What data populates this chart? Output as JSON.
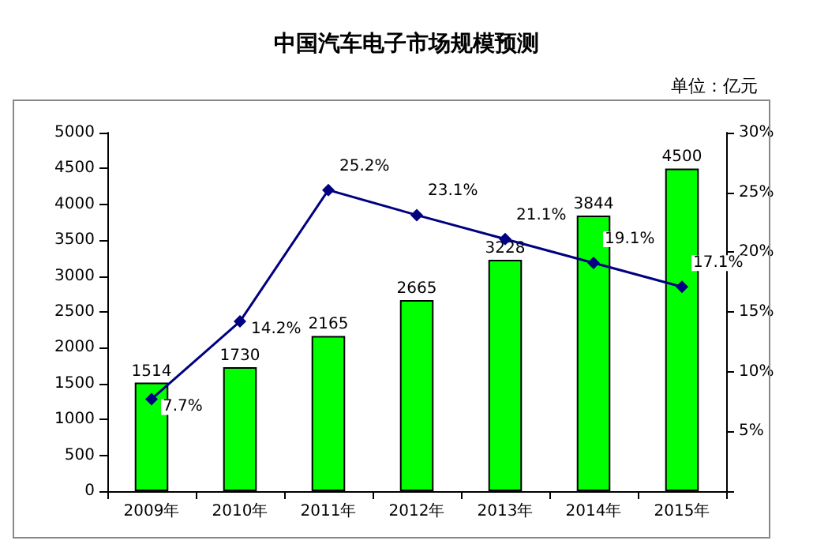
{
  "chart_data": {
    "type": "bar",
    "title": "中国汽车电子市场规模预测",
    "annotations": [
      "单位：亿元"
    ],
    "categories": [
      "2009年",
      "2010年",
      "2011年",
      "2012年",
      "2013年",
      "2014年",
      "2015年"
    ],
    "series": [
      {
        "color": "#00ff00",
        "values": [
          1514,
          1730,
          2165,
          2665,
          3228,
          3844,
          4500
        ],
        "value_labels": [
          "1514",
          "1730",
          "2165",
          "2665",
          "3228",
          "3844",
          "4500"
        ]
      },
      {
        "type": "line",
        "axis": "y2",
        "color": "#000080",
        "marker": "diamond",
        "values": [
          7.7,
          14.2,
          25.2,
          23.1,
          21.1,
          19.1,
          17.1
        ],
        "value_labels": [
          "7.7%",
          "14.2%",
          "25.2%",
          "23.1%",
          "21.1%",
          "19.1%",
          "17.1%"
        ]
      }
    ],
    "ylim": [
      0,
      5000
    ],
    "yticks": [
      0,
      500,
      1000,
      1500,
      2000,
      2500,
      3000,
      3500,
      4000,
      4500,
      5000
    ],
    "y2lim": [
      0,
      30
    ],
    "y2ticks": [
      {
        "value": 0,
        "label": null
      },
      {
        "value": 5,
        "label": "5%"
      },
      {
        "value": 10,
        "label": "10%"
      },
      {
        "value": 15,
        "label": "15%"
      },
      {
        "value": 20,
        "label": "20%"
      },
      {
        "value": 25,
        "label": "25%"
      },
      {
        "value": 30,
        "label": "30%"
      }
    ],
    "grid": false
  }
}
